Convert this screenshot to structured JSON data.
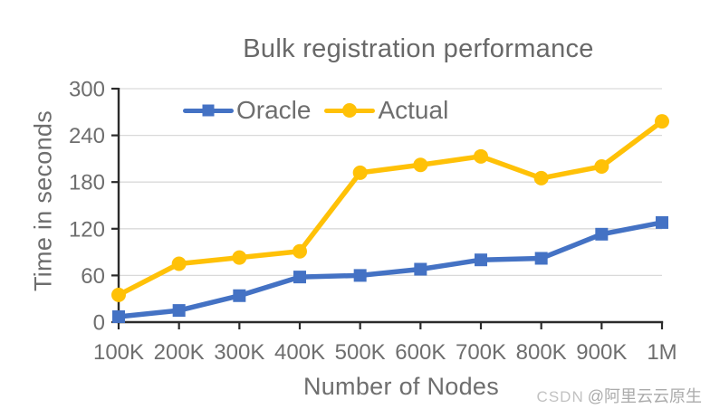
{
  "watermark": {
    "prefix": "CSDN",
    "handle": "@阿里云云原生"
  },
  "chart_data": {
    "type": "line",
    "title": "Bulk registration performance",
    "xlabel": "Number of Nodes",
    "ylabel": "Time in seconds",
    "categories": [
      "100K",
      "200K",
      "300K",
      "400K",
      "500K",
      "600K",
      "700K",
      "800K",
      "900K",
      "1M"
    ],
    "yticks": [
      0,
      60,
      120,
      180,
      240,
      300
    ],
    "ylim": [
      0,
      300
    ],
    "grid": "horizontal-only",
    "legend_position": "top-center-inside",
    "colors": {
      "axis": "#2b2b2b",
      "grid": "#d9d9d9",
      "text": "#6e6e6e"
    },
    "series": [
      {
        "name": "Oracle",
        "marker": "square",
        "color": "#4472c4",
        "values": [
          7,
          15,
          34,
          58,
          60,
          68,
          80,
          82,
          113,
          128
        ]
      },
      {
        "name": "Actual",
        "marker": "circle",
        "color": "#ffc107",
        "values": [
          35,
          75,
          83,
          91,
          192,
          202,
          213,
          185,
          200,
          258
        ]
      }
    ]
  }
}
